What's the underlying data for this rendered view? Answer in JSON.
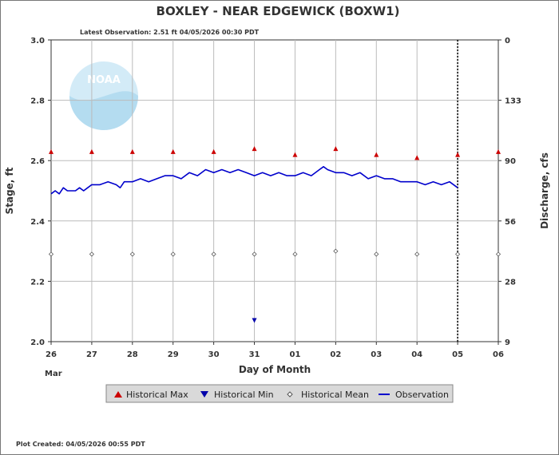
{
  "chart_data": {
    "type": "line",
    "title": "BOXLEY - NEAR EDGEWICK  (BOXW1)",
    "subtitle": "Latest Observation: 2.51 ft 04/05/2026 00:30 PDT",
    "footer": "Plot Created: 04/05/2026 00:55 PDT",
    "xlabel": "Day of Month",
    "x_month_label": "Mar",
    "ylabel_left": "Stage, ft",
    "ylabel_right": "Discharge, cfs",
    "x_ticks": [
      "26",
      "27",
      "28",
      "29",
      "30",
      "31",
      "01",
      "02",
      "03",
      "04",
      "05",
      "06"
    ],
    "y_left_ticks": [
      "3.0",
      "2.8",
      "2.6",
      "2.4",
      "2.2",
      "2.0"
    ],
    "y_left_tick_values": [
      3.0,
      2.8,
      2.6,
      2.4,
      2.2,
      2.0
    ],
    "y_right_ticks": [
      "0",
      "133",
      "90",
      "56",
      "28",
      "9"
    ],
    "ylim": [
      2.0,
      3.0
    ],
    "xlim_days": [
      0,
      11
    ],
    "latest_observation_day": 10,
    "grid": true,
    "colors": {
      "observation": "#0000cc",
      "historical_max": "#cc0000",
      "historical_min": "#0000aa",
      "historical_mean": "#888888",
      "grid": "#bbbbbb",
      "axes": "#333333"
    },
    "logo_text": "NOAA",
    "legend": {
      "placement": "bottom",
      "entries": [
        "Historical Max",
        "Historical Min",
        "Historical Mean",
        "Observation"
      ]
    },
    "historical_max": {
      "name": "Historical Max",
      "x": [
        0,
        1,
        2,
        3,
        4,
        5,
        6,
        7,
        8,
        9,
        10,
        11
      ],
      "y": [
        2.63,
        2.63,
        2.63,
        2.63,
        2.63,
        2.64,
        2.62,
        2.64,
        2.62,
        2.61,
        2.62,
        2.63
      ]
    },
    "historical_min": {
      "name": "Historical Min",
      "x": [
        5
      ],
      "y": [
        2.07
      ]
    },
    "historical_mean": {
      "name": "Historical Mean",
      "x": [
        0,
        1,
        2,
        3,
        4,
        5,
        6,
        7,
        8,
        9,
        10,
        11
      ],
      "y": [
        2.29,
        2.29,
        2.29,
        2.29,
        2.29,
        2.29,
        2.29,
        2.3,
        2.29,
        2.29,
        2.29,
        2.29
      ]
    },
    "observation": {
      "name": "Observation",
      "x": [
        0,
        0.1,
        0.2,
        0.3,
        0.4,
        0.5,
        0.6,
        0.7,
        0.8,
        0.9,
        1.0,
        1.2,
        1.4,
        1.6,
        1.7,
        1.8,
        1.9,
        2.0,
        2.2,
        2.4,
        2.6,
        2.8,
        3.0,
        3.2,
        3.4,
        3.6,
        3.8,
        4.0,
        4.2,
        4.4,
        4.6,
        4.8,
        5.0,
        5.2,
        5.4,
        5.6,
        5.8,
        6.0,
        6.2,
        6.4,
        6.6,
        6.7,
        6.8,
        7.0,
        7.2,
        7.4,
        7.6,
        7.8,
        8.0,
        8.2,
        8.4,
        8.6,
        8.8,
        9.0,
        9.2,
        9.4,
        9.6,
        9.8,
        10.0
      ],
      "y": [
        2.49,
        2.5,
        2.49,
        2.51,
        2.5,
        2.5,
        2.5,
        2.51,
        2.5,
        2.51,
        2.52,
        2.52,
        2.53,
        2.52,
        2.51,
        2.53,
        2.53,
        2.53,
        2.54,
        2.53,
        2.54,
        2.55,
        2.55,
        2.54,
        2.56,
        2.55,
        2.57,
        2.56,
        2.57,
        2.56,
        2.57,
        2.56,
        2.55,
        2.56,
        2.55,
        2.56,
        2.55,
        2.55,
        2.56,
        2.55,
        2.57,
        2.58,
        2.57,
        2.56,
        2.56,
        2.55,
        2.56,
        2.54,
        2.55,
        2.54,
        2.54,
        2.53,
        2.53,
        2.53,
        2.52,
        2.53,
        2.52,
        2.53,
        2.51
      ]
    }
  }
}
